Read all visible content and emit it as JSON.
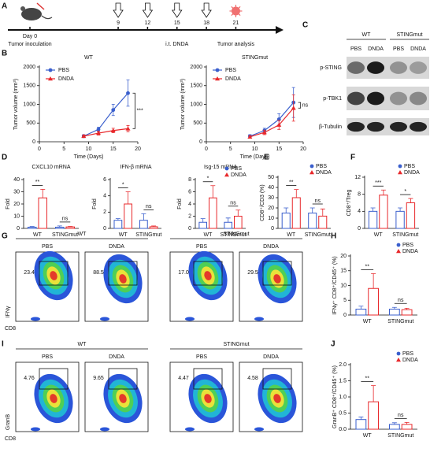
{
  "panel_labels": [
    "A",
    "B",
    "C",
    "D",
    "E",
    "F",
    "G",
    "H",
    "I",
    "J"
  ],
  "timeline": {
    "start_label": "Day 0",
    "start_note": "Tumor inoculation",
    "days": [
      9,
      12,
      15,
      18,
      21
    ],
    "treatment": "i.t. DNDA",
    "endpoint": "Tumor analysis"
  },
  "blot": {
    "groups": [
      "WT",
      "STINGmut"
    ],
    "conditions": [
      "PBS",
      "DNDA",
      "PBS",
      "DNDA"
    ],
    "proteins": [
      "p-STING",
      "p-TBK1",
      "β-Tubulin"
    ]
  },
  "flow": [
    {
      "groups": [
        "WT",
        "STINGmut"
      ],
      "conditions": [
        "PBS",
        "DNDA",
        "PBS",
        "DNDA"
      ],
      "gates": [
        "23.4",
        "88.5",
        "17.0",
        "29.5"
      ],
      "y_label": "IFNγ",
      "x_label": "CD8"
    },
    {
      "groups": [
        "WT",
        "STINGmut"
      ],
      "conditions": [
        "PBS",
        "DNDA",
        "PBS",
        "DNDA"
      ],
      "gates": [
        "4.76",
        "9.65",
        "4.47",
        "4.58"
      ],
      "y_label": "GranB",
      "x_label": "CD8"
    }
  ],
  "chart_data": [
    {
      "type": "line",
      "title": "WT",
      "x": [
        9,
        12,
        15,
        18
      ],
      "xlim": [
        0,
        20
      ],
      "xticks": [
        0,
        5,
        10,
        15,
        20
      ],
      "ylim": [
        0,
        2000
      ],
      "yticks": [
        0,
        500,
        1000,
        1500,
        2000
      ],
      "xlabel": "Time (Days)",
      "ylabel": "Tumor volume (mm³)",
      "annotation": "***",
      "series": [
        {
          "name": "PBS",
          "color": "#3a5fcd",
          "marker": "circle",
          "values": [
            150,
            330,
            850,
            1300
          ],
          "errors": [
            40,
            60,
            150,
            350
          ]
        },
        {
          "name": "DNDA",
          "color": "#e8282b",
          "marker": "triangle",
          "values": [
            150,
            230,
            300,
            350
          ],
          "errors": [
            30,
            50,
            60,
            80
          ]
        }
      ]
    },
    {
      "type": "line",
      "title": "STINGmut",
      "x": [
        9,
        12,
        15,
        18
      ],
      "xlim": [
        0,
        20
      ],
      "xticks": [
        0,
        5,
        10,
        15,
        20
      ],
      "ylim": [
        0,
        2000
      ],
      "yticks": [
        0,
        500,
        1000,
        1500,
        2000
      ],
      "xlabel": "Time (Days)",
      "ylabel": "Tumor volume (mm³)",
      "annotation": "ns",
      "series": [
        {
          "name": "PBS",
          "color": "#3a5fcd",
          "marker": "circle",
          "values": [
            150,
            300,
            600,
            1050
          ],
          "errors": [
            40,
            60,
            150,
            400
          ]
        },
        {
          "name": "DNDA",
          "color": "#e8282b",
          "marker": "triangle",
          "values": [
            130,
            250,
            450,
            900
          ],
          "errors": [
            30,
            60,
            120,
            350
          ]
        }
      ]
    },
    {
      "type": "bar",
      "title": "CXCL10 mRNA",
      "ylabel": "Fold",
      "categories": [
        "WT",
        "STINGmut"
      ],
      "ylim": [
        0,
        40
      ],
      "yticks": [
        0,
        10,
        20,
        30,
        40
      ],
      "annotations": [
        "**",
        "ns"
      ],
      "legend": false,
      "series": [
        {
          "color": "#3a5fcd",
          "marker": "circle",
          "values": [
            1,
            1
          ],
          "errors": [
            0.5,
            1
          ]
        },
        {
          "color": "#e8282b",
          "marker": "triangle",
          "values": [
            25,
            1.2
          ],
          "errors": [
            7,
            0.4
          ]
        }
      ]
    },
    {
      "type": "bar",
      "title": "IFN-β mRNA",
      "ylabel": "Fold",
      "categories": [
        "WT",
        "STINGmut"
      ],
      "ylim": [
        0,
        6
      ],
      "yticks": [
        0,
        2,
        4,
        6
      ],
      "annotations": [
        "*",
        "ns"
      ],
      "legend": false,
      "series": [
        {
          "color": "#3a5fcd",
          "marker": "circle",
          "values": [
            1,
            1
          ],
          "errors": [
            0.2,
            0.8
          ]
        },
        {
          "color": "#e8282b",
          "marker": "triangle",
          "values": [
            3,
            0.2
          ],
          "errors": [
            1.5,
            0.1
          ]
        }
      ]
    },
    {
      "type": "bar",
      "title": "Isg-15 mRNA",
      "ylabel": "Fold",
      "categories": [
        "WT",
        "STINGmut"
      ],
      "ylim": [
        0,
        8
      ],
      "yticks": [
        0,
        2,
        4,
        6,
        8
      ],
      "annotations": [
        "*",
        "ns"
      ],
      "legend": true,
      "series": [
        {
          "name": "PBS",
          "color": "#3a5fcd",
          "marker": "circle",
          "values": [
            1,
            1
          ],
          "errors": [
            0.6,
            0.7
          ]
        },
        {
          "name": "DNDA",
          "color": "#e8282b",
          "marker": "triangle",
          "values": [
            5,
            2
          ],
          "errors": [
            2,
            1
          ]
        }
      ]
    },
    {
      "type": "bar",
      "ylabel": "CD8⁺/CD3 (%)",
      "categories": [
        "WT",
        "STINGmut"
      ],
      "ylim": [
        0,
        50
      ],
      "yticks": [
        0,
        10,
        20,
        30,
        40,
        50
      ],
      "annotations": [
        "**",
        "ns"
      ],
      "legend": true,
      "series": [
        {
          "name": "PBS",
          "color": "#3a5fcd",
          "marker": "circle",
          "values": [
            15,
            15
          ],
          "errors": [
            5,
            5
          ]
        },
        {
          "name": "DNDA",
          "color": "#e8282b",
          "marker": "triangle",
          "values": [
            30,
            12
          ],
          "errors": [
            8,
            7
          ]
        }
      ]
    },
    {
      "type": "bar",
      "ylabel": "CD8⁺/Treg",
      "categories": [
        "WT",
        "STINGmut"
      ],
      "ylim": [
        0,
        12
      ],
      "yticks": [
        0,
        4,
        8,
        12
      ],
      "annotations": [
        "***",
        "*"
      ],
      "legend": true,
      "series": [
        {
          "name": "PBS",
          "color": "#3a5fcd",
          "marker": "circle",
          "values": [
            4,
            4
          ],
          "errors": [
            0.8,
            0.8
          ]
        },
        {
          "name": "DNDA",
          "color": "#e8282b",
          "marker": "triangle",
          "values": [
            7.8,
            6
          ],
          "errors": [
            1.2,
            1
          ]
        }
      ]
    },
    {
      "type": "bar",
      "ylabel": "IFNγ⁺ CD8⁺/CD45⁺ (%)",
      "categories": [
        "WT",
        "STINGmut"
      ],
      "ylim": [
        0,
        20
      ],
      "yticks": [
        0,
        5,
        10,
        15,
        20
      ],
      "annotations": [
        "**",
        "ns"
      ],
      "legend": true,
      "series": [
        {
          "name": "PBS",
          "color": "#3a5fcd",
          "marker": "circle",
          "values": [
            2,
            2
          ],
          "errors": [
            1,
            0.6
          ]
        },
        {
          "name": "DNDA",
          "color": "#e8282b",
          "marker": "triangle",
          "values": [
            9,
            1.8
          ],
          "errors": [
            5,
            0.5
          ]
        }
      ]
    },
    {
      "type": "bar",
      "ylabel": "GranB⁺ CD8⁺/CD45⁺ (%)",
      "categories": [
        "WT",
        "STINGmut"
      ],
      "ylim": [
        0,
        2
      ],
      "yticks": [
        {
          "value": 0,
          "label": "0.0"
        },
        0.5,
        {
          "value": 1,
          "label": "1.0"
        },
        1.5,
        {
          "value": 2,
          "label": "2.0"
        }
      ],
      "annotations": [
        "**",
        "ns"
      ],
      "legend": true,
      "series": [
        {
          "name": "PBS",
          "color": "#3a5fcd",
          "marker": "circle",
          "values": [
            0.3,
            0.15
          ],
          "errors": [
            0.08,
            0.05
          ]
        },
        {
          "name": "DNDA",
          "color": "#e8282b",
          "marker": "triangle",
          "values": [
            0.85,
            0.15
          ],
          "errors": [
            0.5,
            0.06
          ]
        }
      ]
    }
  ]
}
